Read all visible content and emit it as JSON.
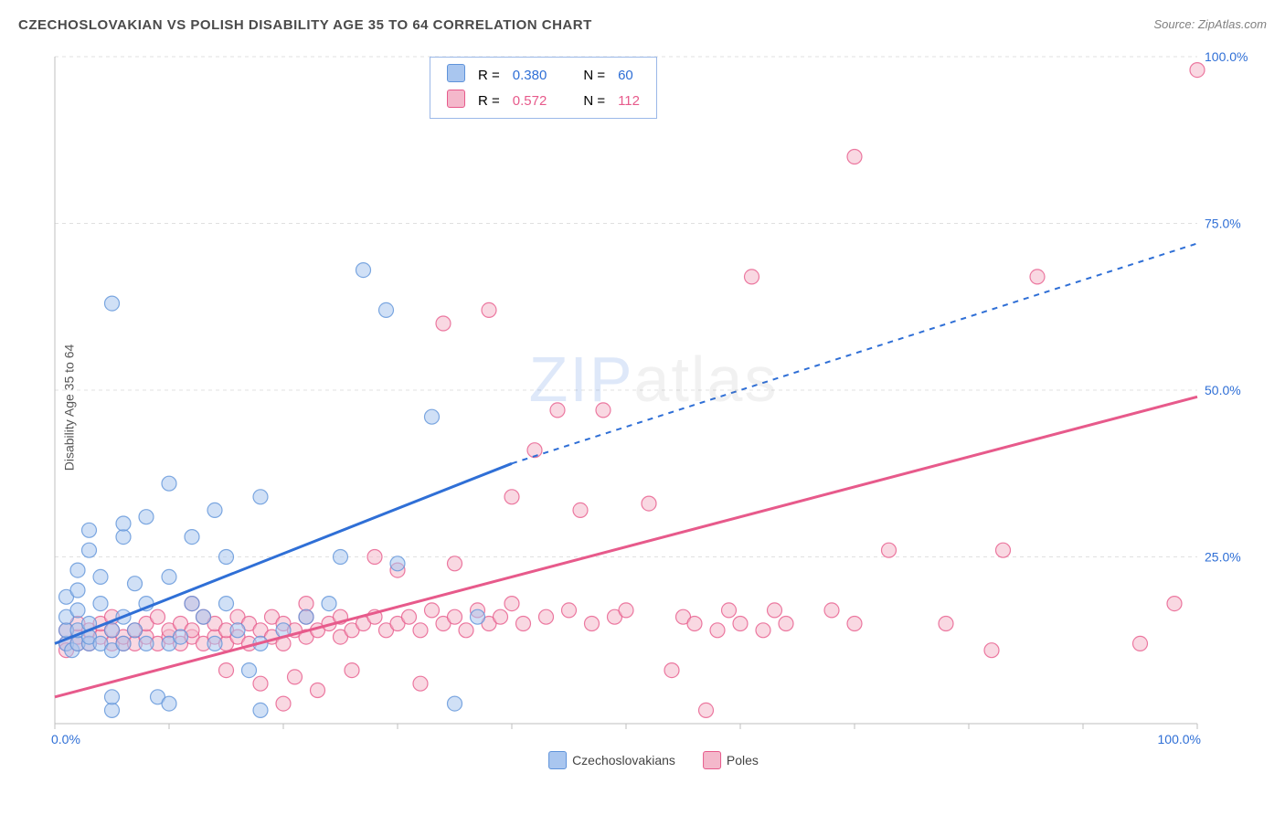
{
  "title": "CZECHOSLOVAKIAN VS POLISH DISABILITY AGE 35 TO 64 CORRELATION CHART",
  "source_prefix": "Source: ",
  "source": "ZipAtlas.com",
  "ylabel": "Disability Age 35 to 64",
  "watermark_a": "ZIP",
  "watermark_b": "atlas",
  "chart": {
    "type": "scatter",
    "xlim": [
      0,
      100
    ],
    "ylim": [
      0,
      100
    ],
    "ytick_labels": [
      "25.0%",
      "50.0%",
      "75.0%",
      "100.0%"
    ],
    "ytick_vals": [
      25,
      50,
      75,
      100
    ],
    "xtick_labels_ends": [
      "0.0%",
      "100.0%"
    ],
    "grid_color": "#e0e0e0",
    "axis_color": "#bfbfbf",
    "background": "#ffffff",
    "tick_label_color": "#2f6fd6",
    "marker_radius": 8,
    "marker_opacity": 0.55,
    "line_width": 3,
    "dash_pattern": "6 6"
  },
  "series": {
    "a": {
      "name": "Czechoslovakians",
      "fill": "#a9c6ef",
      "stroke": "#5f93da",
      "line_color": "#2f6fd6",
      "R": "0.380",
      "N": "60",
      "trend": {
        "x1": 0,
        "y1": 12,
        "solid_to_x": 40,
        "solid_to_y": 39,
        "x2": 100,
        "y2": 72
      },
      "points": [
        [
          1,
          12
        ],
        [
          1,
          14
        ],
        [
          1,
          16
        ],
        [
          1,
          19
        ],
        [
          1.5,
          11
        ],
        [
          2,
          12
        ],
        [
          2,
          14
        ],
        [
          2,
          17
        ],
        [
          2,
          20
        ],
        [
          2,
          23
        ],
        [
          3,
          12
        ],
        [
          3,
          13
        ],
        [
          3,
          15
        ],
        [
          3,
          26
        ],
        [
          3,
          29
        ],
        [
          4,
          12
        ],
        [
          4,
          18
        ],
        [
          4,
          22
        ],
        [
          5,
          11
        ],
        [
          5,
          14
        ],
        [
          5,
          63
        ],
        [
          5,
          2
        ],
        [
          5,
          4
        ],
        [
          6,
          12
        ],
        [
          6,
          16
        ],
        [
          6,
          28
        ],
        [
          6,
          30
        ],
        [
          7,
          14
        ],
        [
          7,
          21
        ],
        [
          8,
          12
        ],
        [
          8,
          18
        ],
        [
          8,
          31
        ],
        [
          9,
          4
        ],
        [
          10,
          12
        ],
        [
          10,
          22
        ],
        [
          10,
          3
        ],
        [
          10,
          36
        ],
        [
          11,
          13
        ],
        [
          12,
          18
        ],
        [
          12,
          28
        ],
        [
          13,
          16
        ],
        [
          14,
          12
        ],
        [
          14,
          32
        ],
        [
          15,
          18
        ],
        [
          15,
          25
        ],
        [
          16,
          14
        ],
        [
          17,
          8
        ],
        [
          18,
          12
        ],
        [
          18,
          2
        ],
        [
          18,
          34
        ],
        [
          20,
          14
        ],
        [
          22,
          16
        ],
        [
          24,
          18
        ],
        [
          25,
          25
        ],
        [
          27,
          68
        ],
        [
          29,
          62
        ],
        [
          30,
          24
        ],
        [
          33,
          46
        ],
        [
          35,
          3
        ],
        [
          37,
          16
        ]
      ]
    },
    "b": {
      "name": "Poles",
      "fill": "#f4b8cb",
      "stroke": "#e75a8b",
      "line_color": "#e75a8b",
      "R": "0.572",
      "N": "112",
      "trend": {
        "x1": 0,
        "y1": 4,
        "solid_to_x": 100,
        "solid_to_y": 49,
        "x2": 100,
        "y2": 49
      },
      "points": [
        [
          1,
          12
        ],
        [
          1,
          14
        ],
        [
          1,
          11
        ],
        [
          2,
          12
        ],
        [
          2,
          13
        ],
        [
          2,
          15
        ],
        [
          3,
          12
        ],
        [
          3,
          14
        ],
        [
          4,
          13
        ],
        [
          4,
          15
        ],
        [
          5,
          12
        ],
        [
          5,
          14
        ],
        [
          5,
          16
        ],
        [
          6,
          12
        ],
        [
          6,
          13
        ],
        [
          7,
          14
        ],
        [
          7,
          12
        ],
        [
          8,
          13
        ],
        [
          8,
          15
        ],
        [
          9,
          12
        ],
        [
          9,
          16
        ],
        [
          10,
          13
        ],
        [
          10,
          14
        ],
        [
          11,
          12
        ],
        [
          11,
          15
        ],
        [
          12,
          13
        ],
        [
          12,
          14
        ],
        [
          12,
          18
        ],
        [
          13,
          12
        ],
        [
          13,
          16
        ],
        [
          14,
          13
        ],
        [
          14,
          15
        ],
        [
          15,
          12
        ],
        [
          15,
          14
        ],
        [
          15,
          8
        ],
        [
          16,
          13
        ],
        [
          16,
          16
        ],
        [
          17,
          12
        ],
        [
          17,
          15
        ],
        [
          18,
          14
        ],
        [
          18,
          6
        ],
        [
          19,
          13
        ],
        [
          19,
          16
        ],
        [
          20,
          12
        ],
        [
          20,
          15
        ],
        [
          21,
          14
        ],
        [
          21,
          7
        ],
        [
          22,
          13
        ],
        [
          22,
          16
        ],
        [
          22,
          18
        ],
        [
          23,
          14
        ],
        [
          23,
          5
        ],
        [
          24,
          15
        ],
        [
          25,
          13
        ],
        [
          25,
          16
        ],
        [
          26,
          14
        ],
        [
          26,
          8
        ],
        [
          27,
          15
        ],
        [
          28,
          16
        ],
        [
          28,
          25
        ],
        [
          29,
          14
        ],
        [
          30,
          15
        ],
        [
          30,
          23
        ],
        [
          31,
          16
        ],
        [
          32,
          14
        ],
        [
          32,
          6
        ],
        [
          33,
          17
        ],
        [
          34,
          15
        ],
        [
          35,
          16
        ],
        [
          35,
          24
        ],
        [
          36,
          14
        ],
        [
          37,
          17
        ],
        [
          38,
          15
        ],
        [
          38,
          62
        ],
        [
          39,
          16
        ],
        [
          40,
          18
        ],
        [
          40,
          34
        ],
        [
          41,
          15
        ],
        [
          42,
          41
        ],
        [
          43,
          16
        ],
        [
          44,
          47
        ],
        [
          45,
          17
        ],
        [
          46,
          32
        ],
        [
          47,
          15
        ],
        [
          48,
          47
        ],
        [
          49,
          16
        ],
        [
          50,
          17
        ],
        [
          52,
          33
        ],
        [
          54,
          8
        ],
        [
          55,
          16
        ],
        [
          56,
          15
        ],
        [
          57,
          2
        ],
        [
          58,
          14
        ],
        [
          59,
          17
        ],
        [
          60,
          15
        ],
        [
          61,
          67
        ],
        [
          62,
          14
        ],
        [
          63,
          17
        ],
        [
          64,
          15
        ],
        [
          68,
          17
        ],
        [
          70,
          15
        ],
        [
          70,
          85
        ],
        [
          73,
          26
        ],
        [
          78,
          15
        ],
        [
          82,
          11
        ],
        [
          83,
          26
        ],
        [
          86,
          67
        ],
        [
          95,
          12
        ],
        [
          98,
          18
        ],
        [
          100,
          98
        ],
        [
          20,
          3
        ],
        [
          34,
          60
        ]
      ]
    }
  },
  "stat_legend": {
    "R_label": "R =",
    "N_label": "N ="
  }
}
